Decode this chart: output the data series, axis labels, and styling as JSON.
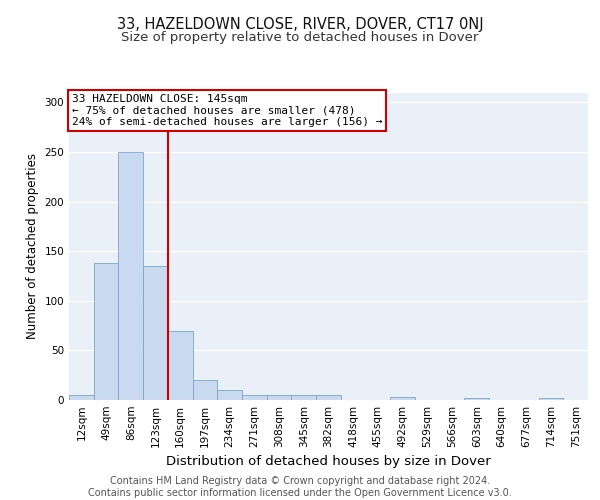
{
  "title1": "33, HAZELDOWN CLOSE, RIVER, DOVER, CT17 0NJ",
  "title2": "Size of property relative to detached houses in Dover",
  "xlabel": "Distribution of detached houses by size in Dover",
  "ylabel": "Number of detached properties",
  "bar_labels": [
    "12sqm",
    "49sqm",
    "86sqm",
    "123sqm",
    "160sqm",
    "197sqm",
    "234sqm",
    "271sqm",
    "308sqm",
    "345sqm",
    "382sqm",
    "418sqm",
    "455sqm",
    "492sqm",
    "529sqm",
    "566sqm",
    "603sqm",
    "640sqm",
    "677sqm",
    "714sqm",
    "751sqm"
  ],
  "bar_values": [
    5,
    138,
    250,
    135,
    70,
    20,
    10,
    5,
    5,
    5,
    5,
    0,
    0,
    3,
    0,
    0,
    2,
    0,
    0,
    2,
    0
  ],
  "bar_color": "#c8d9f0",
  "bar_edge_color": "#7da6c8",
  "vline_x_idx": 3.5,
  "vline_color": "#cc0000",
  "annotation_line1": "33 HAZELDOWN CLOSE: 145sqm",
  "annotation_line2": "← 75% of detached houses are smaller (478)",
  "annotation_line3": "24% of semi-detached houses are larger (156) →",
  "annotation_box_color": "#ffffff",
  "annotation_box_edge_color": "#cc0000",
  "ylim": [
    0,
    310
  ],
  "yticks": [
    0,
    50,
    100,
    150,
    200,
    250,
    300
  ],
  "bg_color": "#eaf0f8",
  "footer": "Contains HM Land Registry data © Crown copyright and database right 2024.\nContains public sector information licensed under the Open Government Licence v3.0.",
  "title1_fontsize": 10.5,
  "title2_fontsize": 9.5,
  "xlabel_fontsize": 9.5,
  "ylabel_fontsize": 8.5,
  "tick_fontsize": 7.5,
  "footer_fontsize": 7.0,
  "annotation_fontsize": 8.0
}
